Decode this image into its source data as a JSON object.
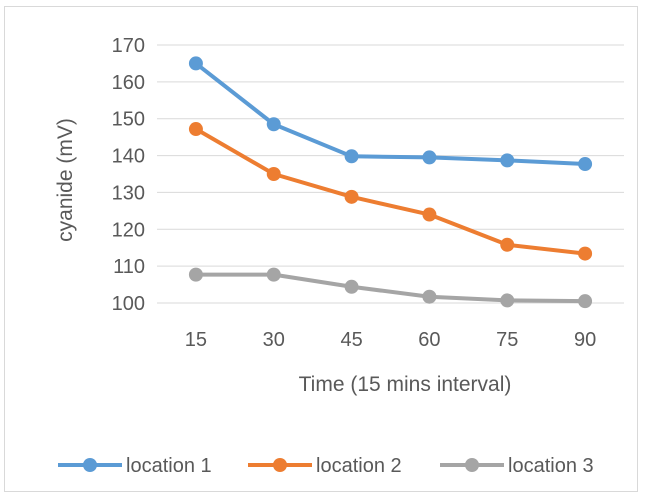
{
  "chart_data": {
    "type": "line",
    "title": "",
    "xlabel": "Time (15 mins interval)",
    "ylabel": "cyanide  (mV)",
    "x": [
      15,
      30,
      45,
      60,
      75,
      90
    ],
    "ylim": [
      100,
      170
    ],
    "yticks": [
      100,
      110,
      120,
      130,
      140,
      150,
      160,
      170
    ],
    "grid": true,
    "legend_position": "bottom",
    "series": [
      {
        "name": "location 1",
        "color": "#5b9bd5",
        "values": [
          165,
          148.5,
          139.8,
          139.5,
          138.7,
          137.7
        ]
      },
      {
        "name": "location 2",
        "color": "#ed7d31",
        "values": [
          147.2,
          135,
          128.8,
          124,
          115.8,
          113.4
        ]
      },
      {
        "name": "location 3",
        "color": "#a5a5a5",
        "values": [
          107.7,
          107.7,
          104.4,
          101.7,
          100.7,
          100.5
        ]
      }
    ]
  }
}
